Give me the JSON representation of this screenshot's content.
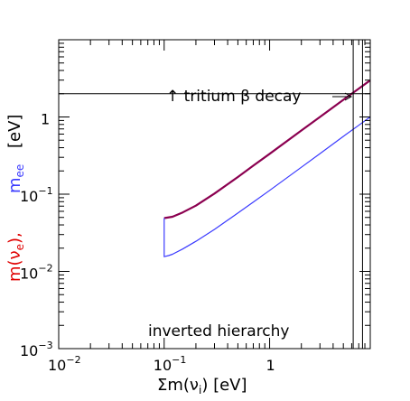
{
  "chart_data": {
    "type": "line",
    "xscale": "log",
    "yscale": "log",
    "xlim": [
      0.01,
      9
    ],
    "ylim": [
      0.001,
      10
    ],
    "xlabel": "Σm(ν_i)  [eV]",
    "ylabel_red": "m(ν_e),",
    "ylabel_blue": "m_ee",
    "ylabel_unit": "[eV]",
    "x_ticks": [
      {
        "value": 0.01,
        "label": "10",
        "exp": "−2"
      },
      {
        "value": 0.1,
        "label": "10",
        "exp": "−1"
      },
      {
        "value": 1,
        "label": "1",
        "exp": ""
      }
    ],
    "y_ticks": [
      {
        "value": 0.001,
        "label": "10",
        "exp": "−3"
      },
      {
        "value": 0.01,
        "label": "10",
        "exp": "−2"
      },
      {
        "value": 0.1,
        "label": "10",
        "exp": "−1"
      },
      {
        "value": 1,
        "label": "1",
        "exp": ""
      }
    ],
    "series": [
      {
        "color": "#8B0050",
        "points": [
          [
            0.1,
            0.049
          ],
          [
            0.12,
            0.051
          ],
          [
            0.15,
            0.058
          ],
          [
            0.2,
            0.071
          ],
          [
            0.3,
            0.102
          ],
          [
            0.5,
            0.167
          ],
          [
            0.7,
            0.234
          ],
          [
            1,
            0.333
          ],
          [
            2,
            0.667
          ],
          [
            3,
            1.0
          ],
          [
            5,
            1.67
          ],
          [
            7,
            2.33
          ],
          [
            8.9,
            2.95
          ]
        ]
      },
      {
        "color": "#3a3aff",
        "points": [
          [
            0.1,
            0.049
          ],
          [
            0.1,
            0.0155
          ],
          [
            0.11,
            0.016
          ],
          [
            0.12,
            0.0167
          ],
          [
            0.15,
            0.0195
          ],
          [
            0.2,
            0.0245
          ],
          [
            0.3,
            0.035
          ],
          [
            0.5,
            0.057
          ],
          [
            0.7,
            0.079
          ],
          [
            1,
            0.112
          ],
          [
            2,
            0.223
          ],
          [
            3,
            0.335
          ],
          [
            5,
            0.56
          ],
          [
            7,
            0.78
          ],
          [
            8.9,
            0.99
          ]
        ]
      }
    ],
    "hline": {
      "y": 2.0,
      "label": "↑ tritium β decay"
    },
    "vlines": [
      6.2,
      7.6
    ],
    "annotation": "inverted hierarchy"
  }
}
